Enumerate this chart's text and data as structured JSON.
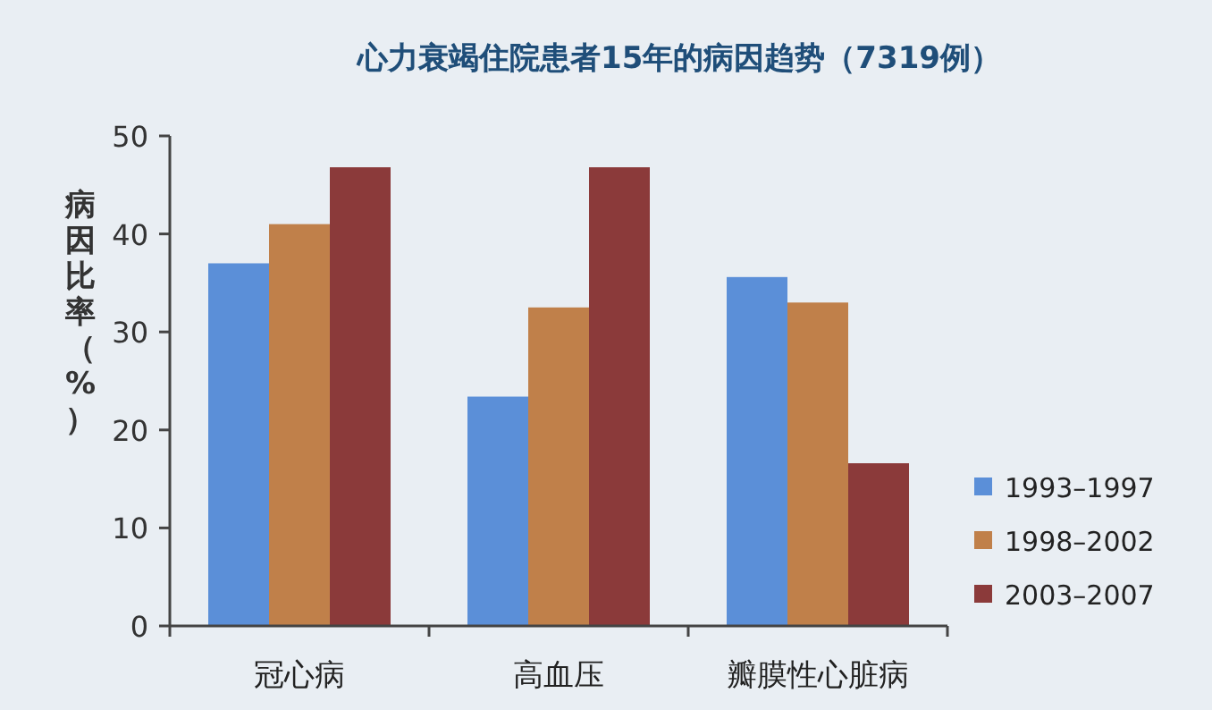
{
  "chart_data": {
    "type": "bar",
    "title": "心力衰竭住院患者15年的病因趋势（7319例）",
    "ylabel": "病因比率（%）",
    "categories": [
      "冠心病",
      "高血压",
      "瓣膜性心脏病"
    ],
    "series": [
      {
        "name": "1993–1997",
        "color": "#5b8fd8",
        "values": [
          37,
          23.4,
          35.6
        ]
      },
      {
        "name": "1998–2002",
        "color": "#c0804a",
        "values": [
          41,
          32.5,
          33
        ]
      },
      {
        "name": "2003–2007",
        "color": "#8b3a3a",
        "values": [
          46.8,
          46.8,
          16.6
        ]
      }
    ],
    "ylim": [
      0,
      50
    ],
    "yticks": [
      0,
      10,
      20,
      30,
      40,
      50
    ],
    "grid": false,
    "legend": "bottom right"
  }
}
